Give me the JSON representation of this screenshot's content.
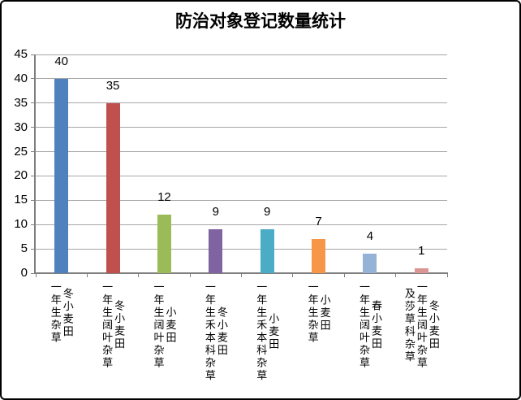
{
  "chart_data": {
    "type": "bar",
    "title": "防治对象登记数量统计",
    "categories": [
      "冬小麦田一年生杂草",
      "冬小麦田一年生阔叶杂草",
      "小麦田一年生阔叶杂草",
      "冬小麦田一年生禾本科杂草",
      "小麦田一年生禾本科杂草",
      "小麦田一年生杂草",
      "春小麦田一年生阔叶杂草",
      "冬小麦田一年生阔叶杂草及莎草科杂草"
    ],
    "category_label_lines": [
      [
        "冬小麦田",
        "一年生杂草"
      ],
      [
        "冬小麦田",
        "一年生阔叶杂草"
      ],
      [
        "小麦田",
        "一年生阔叶杂草"
      ],
      [
        "冬小麦田",
        "一年生禾本科杂草"
      ],
      [
        "小麦田",
        "一年生禾本科杂草"
      ],
      [
        "小麦田",
        "一年生杂草"
      ],
      [
        "春小麦田",
        "一年生阔叶杂草"
      ],
      [
        "冬小麦田",
        "一年生阔叶杂草",
        "及莎草科杂草"
      ]
    ],
    "values": [
      40,
      35,
      12,
      9,
      9,
      7,
      4,
      1
    ],
    "bar_colors": [
      "#4F81BD",
      "#C0504D",
      "#9BBB59",
      "#8064A2",
      "#4BACC6",
      "#F79646",
      "#95B3D7",
      "#D99694"
    ],
    "xlabel": "",
    "ylabel": "",
    "ylim": [
      0,
      45
    ],
    "yticks": [
      0,
      5,
      10,
      15,
      20,
      25,
      30,
      35,
      40,
      45
    ],
    "grid": "horizontal",
    "legend_position": "none",
    "data_labels_position": "outside-end"
  },
  "colors": {
    "gridline": "#A6A6A6",
    "axis": "#7F7F7F",
    "text": "#000000",
    "border": "#000000",
    "background": "#FFFFFF"
  }
}
